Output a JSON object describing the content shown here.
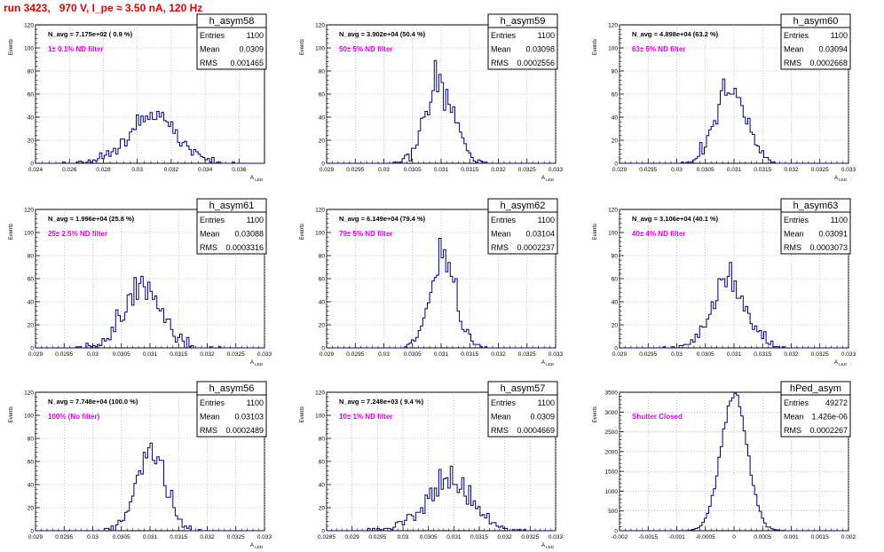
{
  "page": {
    "title": "run 3423,   970 V, I_pe ≈ 3.50 nA, 120 Hz"
  },
  "colors": {
    "title": "#e00000",
    "annotation": "#e000e0",
    "line": "#00007a",
    "grid": "#999999"
  },
  "chart_data": [
    {
      "type": "histogram",
      "name": "h_asym58",
      "stats": {
        "Entries": "1100",
        "Mean": "0.0309",
        "RMS": "0.001465"
      },
      "navg_text": "N_avg = 7.175e+02 ( 0.9 %)",
      "annotation": "1± 0.1% ND filter",
      "xlabel": "A_LED",
      "ylabel": "Events",
      "xlim": [
        0.024,
        0.0375
      ],
      "ylim": [
        0,
        120
      ],
      "xticks": [
        "0.024",
        "0.026",
        "0.028",
        "0.03",
        "0.032",
        "0.034",
        "0.036"
      ],
      "xtick_vals": [
        0.024,
        0.026,
        0.028,
        0.03,
        0.032,
        0.034,
        0.036
      ],
      "yticks": [
        "0",
        "20",
        "40",
        "60",
        "80",
        "100",
        "120"
      ],
      "mean": 0.0309,
      "rms": 0.001465,
      "entries": 1100,
      "bins": 100,
      "seed": 58
    },
    {
      "type": "histogram",
      "name": "h_asym59",
      "stats": {
        "Entries": "1100",
        "Mean": "0.03098",
        "RMS": "0.0002556"
      },
      "navg_text": "N_avg = 3.902e+04 (50.4 %)",
      "annotation": "50± 5% ND filter",
      "xlabel": "A_LED",
      "ylabel": "Events",
      "xlim": [
        0.029,
        0.033
      ],
      "ylim": [
        0,
        120
      ],
      "xticks": [
        "0.029",
        "0.0295",
        "0.03",
        "0.0305",
        "0.031",
        "0.0315",
        "0.032",
        "0.0325",
        "0.033"
      ],
      "xtick_vals": [
        0.029,
        0.0295,
        0.03,
        0.0305,
        0.031,
        0.0315,
        0.032,
        0.0325,
        0.033
      ],
      "yticks": [
        "0",
        "20",
        "40",
        "60",
        "80",
        "100",
        "120"
      ],
      "mean": 0.03098,
      "rms": 0.0002556,
      "entries": 1100,
      "bins": 100,
      "seed": 59
    },
    {
      "type": "histogram",
      "name": "h_asym60",
      "stats": {
        "Entries": "1100",
        "Mean": "0.03094",
        "RMS": "0.0002668"
      },
      "navg_text": "N_avg = 4.898e+04 (63.2 %)",
      "annotation": "63± 5% ND filter",
      "xlabel": "A_LED",
      "ylabel": "Events",
      "xlim": [
        0.029,
        0.033
      ],
      "ylim": [
        0,
        120
      ],
      "xticks": [
        "0.029",
        "0.0295",
        "0.03",
        "0.0305",
        "0.031",
        "0.0315",
        "0.032",
        "0.0325",
        "0.033"
      ],
      "xtick_vals": [
        0.029,
        0.0295,
        0.03,
        0.0305,
        0.031,
        0.0315,
        0.032,
        0.0325,
        0.033
      ],
      "yticks": [
        "0",
        "20",
        "40",
        "60",
        "80",
        "100",
        "120"
      ],
      "mean": 0.03094,
      "rms": 0.0002668,
      "entries": 1100,
      "bins": 100,
      "seed": 60
    },
    {
      "type": "histogram",
      "name": "h_asym61",
      "stats": {
        "Entries": "1100",
        "Mean": "0.03088",
        "RMS": "0.0003316"
      },
      "navg_text": "N_avg = 1.996e+04 (25.8 %)",
      "annotation": "25± 2.5% ND filter",
      "xlabel": "A_LED",
      "ylabel": "Events",
      "xlim": [
        0.029,
        0.033
      ],
      "ylim": [
        0,
        120
      ],
      "xticks": [
        "0.029",
        "0.0295",
        "0.03",
        "0.0305",
        "0.031",
        "0.0315",
        "0.032",
        "0.0325",
        "0.033"
      ],
      "xtick_vals": [
        0.029,
        0.0295,
        0.03,
        0.0305,
        0.031,
        0.0315,
        0.032,
        0.0325,
        0.033
      ],
      "yticks": [
        "0",
        "20",
        "40",
        "60",
        "80",
        "100",
        "120"
      ],
      "mean": 0.03088,
      "rms": 0.0003316,
      "entries": 1100,
      "bins": 100,
      "seed": 61
    },
    {
      "type": "histogram",
      "name": "h_asym62",
      "stats": {
        "Entries": "1100",
        "Mean": "0.03104",
        "RMS": "0.0002237"
      },
      "navg_text": "N_avg = 6.149e+04 (79.4 %)",
      "annotation": "79± 5% ND filter",
      "xlabel": "A_LED",
      "ylabel": "Events",
      "xlim": [
        0.029,
        0.033
      ],
      "ylim": [
        0,
        120
      ],
      "xticks": [
        "0.029",
        "0.0295",
        "0.03",
        "0.0305",
        "0.031",
        "0.0315",
        "0.032",
        "0.0325",
        "0.033"
      ],
      "xtick_vals": [
        0.029,
        0.0295,
        0.03,
        0.0305,
        0.031,
        0.0315,
        0.032,
        0.0325,
        0.033
      ],
      "yticks": [
        "0",
        "20",
        "40",
        "60",
        "80",
        "100",
        "120"
      ],
      "mean": 0.03104,
      "rms": 0.0002237,
      "entries": 1100,
      "bins": 100,
      "seed": 62
    },
    {
      "type": "histogram",
      "name": "h_asym63",
      "stats": {
        "Entries": "1100",
        "Mean": "0.03091",
        "RMS": "0.0003073"
      },
      "navg_text": "N_avg = 3.106e+04 (40.1 %)",
      "annotation": "40± 4% ND filter",
      "xlabel": "A_LED",
      "ylabel": "Events",
      "xlim": [
        0.029,
        0.033
      ],
      "ylim": [
        0,
        120
      ],
      "xticks": [
        "0.029",
        "0.0295",
        "0.03",
        "0.0305",
        "0.031",
        "0.0315",
        "0.032",
        "0.0325",
        "0.033"
      ],
      "xtick_vals": [
        0.029,
        0.0295,
        0.03,
        0.0305,
        0.031,
        0.0315,
        0.032,
        0.0325,
        0.033
      ],
      "yticks": [
        "0",
        "20",
        "40",
        "60",
        "80",
        "100",
        "120"
      ],
      "mean": 0.03091,
      "rms": 0.0003073,
      "entries": 1100,
      "bins": 100,
      "seed": 63
    },
    {
      "type": "histogram",
      "name": "h_asym56",
      "stats": {
        "Entries": "1100",
        "Mean": "0.03103",
        "RMS": "0.0002489"
      },
      "navg_text": "N_avg = 7.748e+04 (100.0 %)",
      "annotation": "100% (No filter)",
      "xlabel": "A_LED",
      "ylabel": "Events",
      "xlim": [
        0.029,
        0.033
      ],
      "ylim": [
        0,
        120
      ],
      "xticks": [
        "0.029",
        "0.0295",
        "0.03",
        "0.0305",
        "0.031",
        "0.0315",
        "0.032",
        "0.0325",
        "0.033"
      ],
      "xtick_vals": [
        0.029,
        0.0295,
        0.03,
        0.0305,
        0.031,
        0.0315,
        0.032,
        0.0325,
        0.033
      ],
      "yticks": [
        "0",
        "20",
        "40",
        "60",
        "80",
        "100",
        "120"
      ],
      "mean": 0.03103,
      "rms": 0.0002489,
      "entries": 1100,
      "bins": 100,
      "seed": 56
    },
    {
      "type": "histogram",
      "name": "h_asym57",
      "stats": {
        "Entries": "1100",
        "Mean": "0.0309",
        "RMS": "0.0004669"
      },
      "navg_text": "N_avg = 7.248e+03 ( 9.4 %)",
      "annotation": "10± 1% ND filter",
      "xlabel": "A_LED",
      "ylabel": "Events",
      "xlim": [
        0.0285,
        0.033
      ],
      "ylim": [
        0,
        120
      ],
      "xticks": [
        "0.0285",
        "0.029",
        "0.0295",
        "0.03",
        "0.0305",
        "0.031",
        "0.0315",
        "0.032",
        "0.0325",
        "0.033"
      ],
      "xtick_vals": [
        0.0285,
        0.029,
        0.0295,
        0.03,
        0.0305,
        0.031,
        0.0315,
        0.032,
        0.0325,
        0.033
      ],
      "yticks": [
        "0",
        "20",
        "40",
        "60",
        "80",
        "100",
        "120"
      ],
      "mean": 0.0309,
      "rms": 0.0004669,
      "entries": 1100,
      "bins": 100,
      "seed": 57
    },
    {
      "type": "histogram",
      "name": "hPed_asym",
      "stats": {
        "Entries": "49272",
        "Mean": "1.426e-06",
        "RMS": "0.0002267"
      },
      "navg_text": "",
      "annotation": "Shutter Closed",
      "xlabel": "",
      "ylabel": "Events",
      "xlim": [
        -0.002,
        0.002
      ],
      "ylim": [
        0,
        3500
      ],
      "xticks": [
        "-0.002",
        "-0.0015",
        "-0.001",
        "-0.0005",
        "0",
        "0.0005",
        "0.001",
        "0.0015",
        "0.002"
      ],
      "xtick_vals": [
        -0.002,
        -0.0015,
        -0.001,
        -0.0005,
        0,
        0.0005,
        0.001,
        0.0015,
        0.002
      ],
      "yticks": [
        "0",
        "500",
        "1000",
        "1500",
        "2000",
        "2500",
        "3000",
        "3500"
      ],
      "mean": 1.426e-06,
      "rms": 0.0002267,
      "entries": 49272,
      "bins": 100,
      "seed": 99
    }
  ]
}
